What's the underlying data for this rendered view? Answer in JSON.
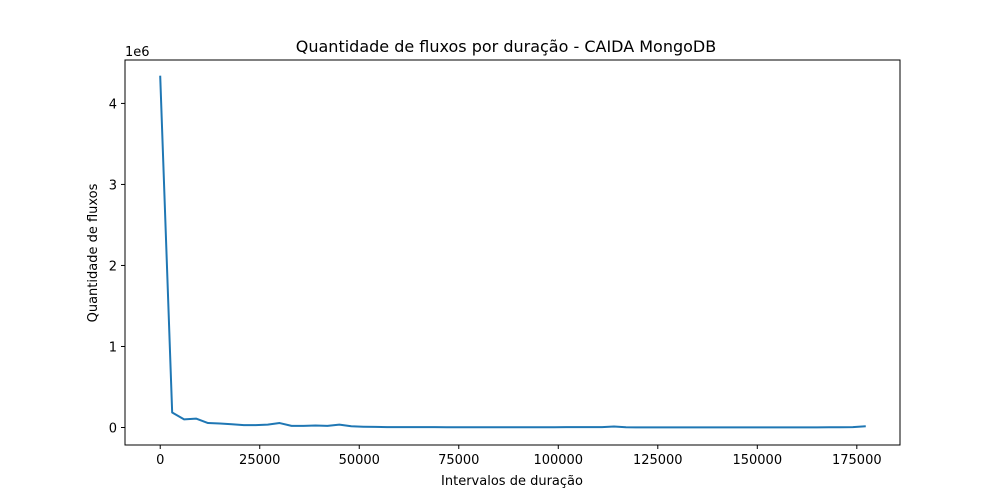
{
  "chart_data": {
    "type": "line",
    "title": "Quantidade de fluxos por duração - CAIDA MongoDB",
    "xlabel": "Intervalos de duração",
    "ylabel": "Quantidade de fluxos",
    "y_offset_label": "1e6",
    "xlim": [
      -8850,
      185850
    ],
    "ylim": [
      -216000,
      4536000
    ],
    "x_ticks": [
      0,
      25000,
      50000,
      75000,
      100000,
      125000,
      150000,
      175000
    ],
    "x_tick_labels": [
      "0",
      "25000",
      "50000",
      "75000",
      "100000",
      "125000",
      "150000",
      "175000"
    ],
    "y_ticks": [
      0,
      1000000,
      2000000,
      3000000,
      4000000
    ],
    "y_tick_labels": [
      "0",
      "1",
      "2",
      "3",
      "4"
    ],
    "grid": false,
    "colors": {
      "line": "#1f77b4"
    },
    "series": [
      {
        "x": [
          0,
          3000,
          6000,
          9000,
          12000,
          15000,
          18000,
          21000,
          24000,
          27000,
          30000,
          33000,
          36000,
          39000,
          42000,
          45000,
          48000,
          51000,
          54000,
          57000,
          60000,
          63000,
          66000,
          69000,
          72000,
          75000,
          78000,
          81000,
          84000,
          87000,
          90000,
          93000,
          96000,
          99000,
          102000,
          105000,
          108000,
          111000,
          114000,
          117000,
          120000,
          123000,
          126000,
          129000,
          132000,
          135000,
          138000,
          141000,
          144000,
          147000,
          150000,
          153000,
          156000,
          159000,
          162000,
          165000,
          168000,
          171000,
          174000,
          177000
        ],
        "values": [
          4330000,
          185000,
          100000,
          110000,
          55000,
          50000,
          40000,
          30000,
          30000,
          35000,
          55000,
          20000,
          20000,
          25000,
          20000,
          35000,
          15000,
          10000,
          8000,
          5000,
          5000,
          5000,
          4000,
          5000,
          3000,
          3000,
          3000,
          3000,
          3000,
          3000,
          3000,
          3000,
          3000,
          3000,
          4000,
          4000,
          5000,
          5000,
          12000,
          3000,
          2000,
          2000,
          2000,
          2000,
          2000,
          2000,
          2000,
          2000,
          2000,
          2000,
          2000,
          2000,
          2000,
          2000,
          2000,
          2000,
          3000,
          3000,
          5000,
          15000
        ]
      }
    ]
  }
}
